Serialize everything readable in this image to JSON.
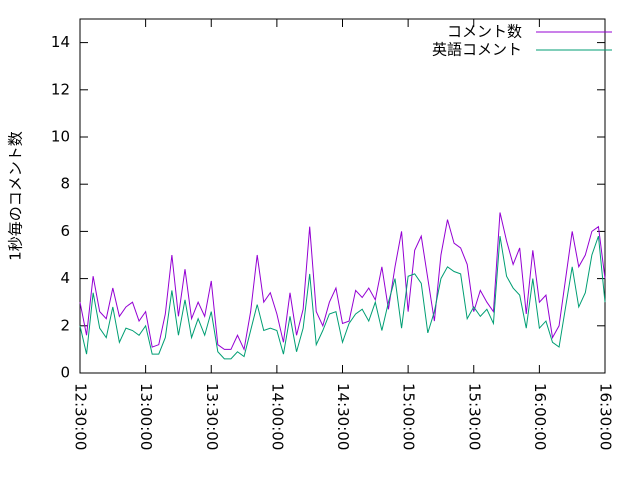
{
  "chart_data": {
    "type": "line",
    "ylabel": "1秒毎のコメント数",
    "x": [
      "12:30:00",
      "12:33:00",
      "12:36:00",
      "12:39:00",
      "12:42:00",
      "12:45:00",
      "12:48:00",
      "12:51:00",
      "12:54:00",
      "12:57:00",
      "13:00:00",
      "13:03:00",
      "13:06:00",
      "13:09:00",
      "13:12:00",
      "13:15:00",
      "13:18:00",
      "13:21:00",
      "13:24:00",
      "13:27:00",
      "13:30:00",
      "13:33:00",
      "13:36:00",
      "13:39:00",
      "13:42:00",
      "13:45:00",
      "13:48:00",
      "13:51:00",
      "13:54:00",
      "13:57:00",
      "14:00:00",
      "14:03:00",
      "14:06:00",
      "14:09:00",
      "14:12:00",
      "14:15:00",
      "14:18:00",
      "14:21:00",
      "14:24:00",
      "14:27:00",
      "14:30:00",
      "14:33:00",
      "14:36:00",
      "14:39:00",
      "14:42:00",
      "14:45:00",
      "14:48:00",
      "14:51:00",
      "14:54:00",
      "14:57:00",
      "15:00:00",
      "15:03:00",
      "15:06:00",
      "15:09:00",
      "15:12:00",
      "15:15:00",
      "15:18:00",
      "15:21:00",
      "15:24:00",
      "15:27:00",
      "15:30:00",
      "15:33:00",
      "15:36:00",
      "15:39:00",
      "15:42:00",
      "15:45:00",
      "15:48:00",
      "15:51:00",
      "15:54:00",
      "15:57:00",
      "16:00:00",
      "16:03:00",
      "16:06:00",
      "16:09:00",
      "16:12:00",
      "16:15:00",
      "16:18:00",
      "16:21:00",
      "16:24:00",
      "16:27:00",
      "16:30:00"
    ],
    "series": [
      {
        "name": "コメント数",
        "color": "#9400d3",
        "values": [
          3.0,
          1.6,
          4.1,
          2.6,
          2.3,
          3.6,
          2.4,
          2.8,
          3.0,
          2.2,
          2.6,
          1.1,
          1.2,
          2.5,
          5.0,
          2.4,
          4.4,
          2.3,
          3.0,
          2.4,
          3.9,
          1.2,
          1.0,
          1.0,
          1.6,
          1.0,
          2.6,
          5.0,
          3.0,
          3.4,
          2.5,
          1.3,
          3.4,
          1.6,
          2.7,
          6.2,
          2.6,
          2.0,
          3.0,
          3.6,
          2.1,
          2.2,
          3.5,
          3.2,
          3.6,
          3.1,
          4.5,
          2.7,
          4.5,
          6.0,
          2.6,
          5.2,
          5.8,
          4.0,
          2.2,
          5.0,
          6.5,
          5.5,
          5.3,
          4.6,
          2.6,
          3.5,
          3.0,
          2.6,
          6.8,
          5.6,
          4.6,
          5.3,
          2.5,
          5.2,
          3.0,
          3.3,
          1.5,
          2.0,
          4.0,
          6.0,
          4.5,
          5.0,
          6.0,
          6.2,
          4.0
        ]
      },
      {
        "name": "英語コメント",
        "color": "#009e73",
        "values": [
          2.0,
          0.8,
          3.4,
          1.9,
          1.5,
          2.8,
          1.3,
          1.9,
          1.8,
          1.6,
          2.0,
          0.8,
          0.8,
          1.5,
          3.5,
          1.6,
          3.1,
          1.5,
          2.3,
          1.6,
          2.6,
          0.9,
          0.6,
          0.6,
          0.9,
          0.7,
          1.8,
          2.9,
          1.8,
          1.9,
          1.8,
          0.8,
          2.4,
          0.9,
          1.9,
          4.2,
          1.2,
          1.8,
          2.5,
          2.6,
          1.3,
          2.1,
          2.5,
          2.7,
          2.2,
          3.0,
          1.8,
          3.0,
          4.0,
          1.9,
          4.1,
          4.2,
          3.8,
          1.7,
          2.6,
          4.0,
          4.5,
          4.3,
          4.2,
          2.3,
          2.8,
          2.4,
          2.7,
          2.1,
          5.8,
          4.1,
          3.6,
          3.3,
          1.9,
          4.0,
          1.9,
          2.2,
          1.3,
          1.1,
          2.8,
          4.5,
          2.8,
          3.4,
          5.0,
          5.8,
          3.0
        ]
      }
    ],
    "xlim": [
      "12:30:00",
      "16:30:00"
    ],
    "xticks": [
      "12:30:00",
      "13:00:00",
      "13:30:00",
      "14:00:00",
      "14:30:00",
      "15:00:00",
      "15:30:00",
      "16:00:00",
      "16:30:00"
    ],
    "ylim": [
      0,
      15
    ],
    "yticks": [
      0,
      2,
      4,
      6,
      8,
      10,
      12,
      14
    ],
    "legend": "top-right"
  }
}
